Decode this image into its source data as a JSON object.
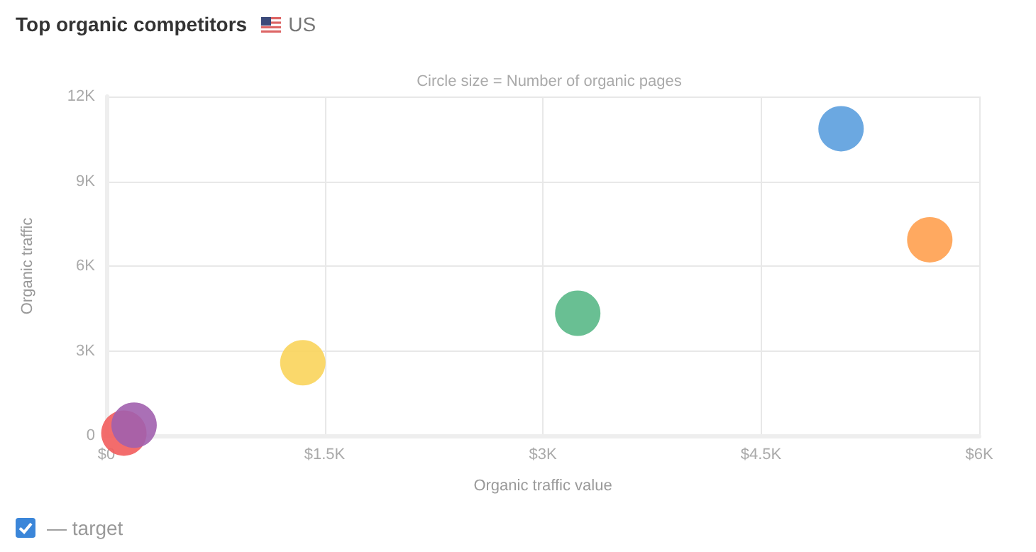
{
  "chart_data": {
    "type": "bubble",
    "title": "Top organic competitors",
    "subtitle": "Circle size = Number of organic pages",
    "xlabel": "Organic traffic value",
    "ylabel": "Organic traffic",
    "annotations": [
      "US",
      "— target"
    ],
    "series": [
      {
        "color": "#5b9fde",
        "x": [
          5050
        ],
        "values": [
          10860
        ],
        "sizes": [
          1
        ]
      },
      {
        "color": "#ffa04f",
        "x": [
          5660
        ],
        "values": [
          6930
        ],
        "sizes": [
          1
        ]
      },
      {
        "color": "#59b887",
        "x": [
          3240
        ],
        "values": [
          4330
        ],
        "sizes": [
          1
        ]
      },
      {
        "color": "#f9d45b",
        "x": [
          1350
        ],
        "values": [
          2580
        ],
        "sizes": [
          1
        ]
      },
      {
        "color": "#f25c5c",
        "x": [
          120
        ],
        "values": [
          90
        ],
        "sizes": [
          1
        ]
      },
      {
        "color": "#a160ae",
        "x": [
          190
        ],
        "values": [
          370
        ],
        "sizes": [
          1
        ]
      }
    ],
    "xlim": [
      0,
      6000
    ],
    "xticks": [
      {
        "value": 0,
        "label": "$0"
      },
      {
        "value": 1500,
        "label": "$1.5K"
      },
      {
        "value": 3000,
        "label": "$3K"
      },
      {
        "value": 4500,
        "label": "$4.5K"
      },
      {
        "value": 6000,
        "label": "$6K"
      }
    ],
    "ylim": [
      0,
      12000
    ],
    "yticks": [
      0,
      {
        "value": 3000,
        "label": "3K"
      },
      {
        "value": 6000,
        "label": "6K"
      },
      {
        "value": 9000,
        "label": "9K"
      },
      {
        "value": 12000,
        "label": "12K"
      }
    ],
    "grid": true
  }
}
